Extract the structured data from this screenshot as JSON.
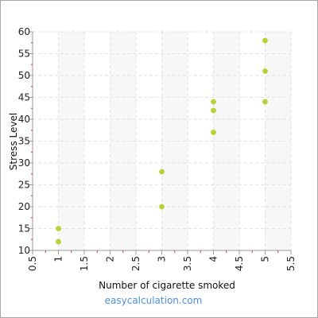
{
  "chart_data": {
    "type": "scatter",
    "xlabel": "Number of cigarette smoked",
    "ylabel": "Stress Level",
    "xlim": [
      0.5,
      5.5
    ],
    "ylim": [
      10,
      60
    ],
    "x_ticks": [
      "0.5",
      "1",
      "1.5",
      "2",
      "2.5",
      "3",
      "3.5",
      "4",
      "4.5",
      "5",
      "5.5"
    ],
    "y_ticks": [
      "10",
      "15",
      "20",
      "25",
      "30",
      "35",
      "40",
      "45",
      "50",
      "55",
      "60"
    ],
    "grid": true,
    "point_color": "#b5d334",
    "points": [
      {
        "x": 1,
        "y": 15
      },
      {
        "x": 1,
        "y": 12
      },
      {
        "x": 3,
        "y": 28
      },
      {
        "x": 3,
        "y": 20
      },
      {
        "x": 4,
        "y": 44
      },
      {
        "x": 4,
        "y": 42
      },
      {
        "x": 4,
        "y": 37
      },
      {
        "x": 5,
        "y": 58
      },
      {
        "x": 5,
        "y": 51
      },
      {
        "x": 5,
        "y": 44
      }
    ]
  },
  "watermark": "easycalculation.com"
}
